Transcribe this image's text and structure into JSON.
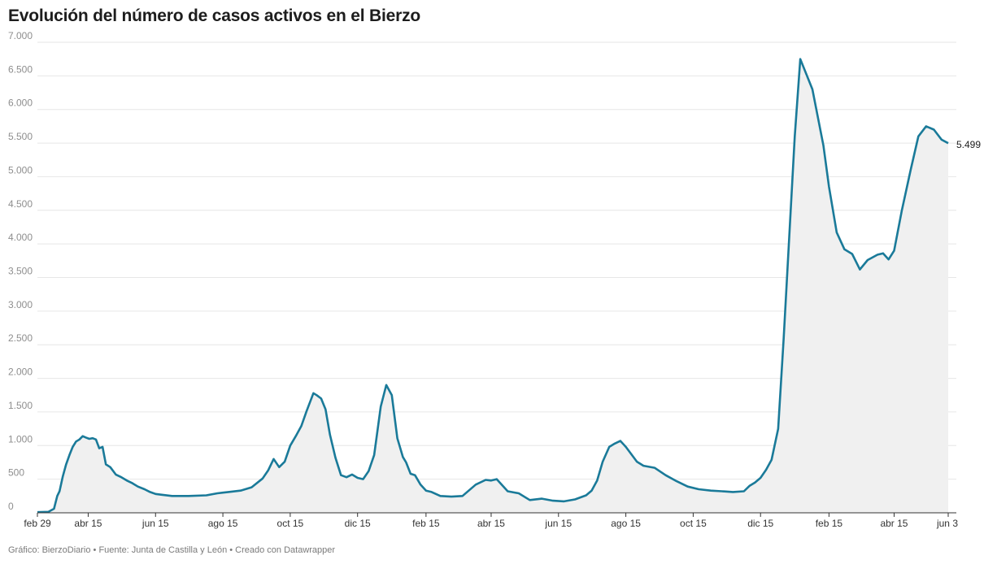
{
  "header": {
    "title": "Evolución del número de casos activos en el Bierzo"
  },
  "footer": {
    "credit": "Gráfico: BierzoDiario • Fuente: Junta de Castilla y León • Creado con Datawrapper"
  },
  "colors": {
    "line": "#1a7a99",
    "area": "#f0f0f0",
    "grid": "#e6e6e6",
    "axis": "#333333"
  },
  "chart_data": {
    "type": "area",
    "title": "Evolución del número de casos activos en el Bierzo",
    "xlabel": "",
    "ylabel": "",
    "x_scale": "date",
    "xlim": [
      "2020-02-29",
      "2022-06-03"
    ],
    "ylim": [
      0,
      7000
    ],
    "grid": true,
    "y_ticks": [
      {
        "value": 0,
        "label": "0"
      },
      {
        "value": 500,
        "label": "500"
      },
      {
        "value": 1000,
        "label": "1.000"
      },
      {
        "value": 1500,
        "label": "1.500"
      },
      {
        "value": 2000,
        "label": "2.000"
      },
      {
        "value": 2500,
        "label": "2.500"
      },
      {
        "value": 3000,
        "label": "3.000"
      },
      {
        "value": 3500,
        "label": "3.500"
      },
      {
        "value": 4000,
        "label": "4.000"
      },
      {
        "value": 4500,
        "label": "4.500"
      },
      {
        "value": 5000,
        "label": "5.000"
      },
      {
        "value": 5500,
        "label": "5.500"
      },
      {
        "value": 6000,
        "label": "6.000"
      },
      {
        "value": 6500,
        "label": "6.500"
      },
      {
        "value": 7000,
        "label": "7.000"
      }
    ],
    "x_ticks": [
      {
        "date": "2020-02-29",
        "label": "feb 29"
      },
      {
        "date": "2020-04-15",
        "label": "abr 15"
      },
      {
        "date": "2020-06-15",
        "label": "jun 15"
      },
      {
        "date": "2020-08-15",
        "label": "ago 15"
      },
      {
        "date": "2020-10-15",
        "label": "oct 15"
      },
      {
        "date": "2020-12-15",
        "label": "dic 15"
      },
      {
        "date": "2021-02-15",
        "label": "feb 15"
      },
      {
        "date": "2021-04-15",
        "label": "abr 15"
      },
      {
        "date": "2021-06-15",
        "label": "jun 15"
      },
      {
        "date": "2021-08-15",
        "label": "ago 15"
      },
      {
        "date": "2021-10-15",
        "label": "oct 15"
      },
      {
        "date": "2021-12-15",
        "label": "dic 15"
      },
      {
        "date": "2022-02-15",
        "label": "feb 15"
      },
      {
        "date": "2022-04-15",
        "label": "abr 15"
      },
      {
        "date": "2022-06-03",
        "label": "jun 3"
      }
    ],
    "end_label": "5.499",
    "series": [
      {
        "x": [
          "2020-02-29",
          "2020-03-10",
          "2020-03-15",
          "2020-03-18",
          "2020-03-20",
          "2020-03-23",
          "2020-03-26",
          "2020-03-29",
          "2020-04-01",
          "2020-04-04",
          "2020-04-07",
          "2020-04-10",
          "2020-04-13",
          "2020-04-16",
          "2020-04-19",
          "2020-04-22",
          "2020-04-25",
          "2020-04-28",
          "2020-05-01",
          "2020-05-05",
          "2020-05-10",
          "2020-05-15",
          "2020-05-20",
          "2020-05-25",
          "2020-05-30",
          "2020-06-05",
          "2020-06-10",
          "2020-06-15",
          "2020-06-20",
          "2020-06-30",
          "2020-07-15",
          "2020-07-31",
          "2020-08-10",
          "2020-08-15",
          "2020-08-20",
          "2020-08-31",
          "2020-09-10",
          "2020-09-20",
          "2020-09-25",
          "2020-09-30",
          "2020-10-05",
          "2020-10-10",
          "2020-10-15",
          "2020-10-20",
          "2020-10-25",
          "2020-10-30",
          "2020-11-05",
          "2020-11-08",
          "2020-11-12",
          "2020-11-16",
          "2020-11-20",
          "2020-11-25",
          "2020-11-30",
          "2020-12-05",
          "2020-12-10",
          "2020-12-15",
          "2020-12-20",
          "2020-12-25",
          "2020-12-30",
          "2021-01-05",
          "2021-01-10",
          "2021-01-15",
          "2021-01-20",
          "2021-01-25",
          "2021-01-28",
          "2021-02-01",
          "2021-02-05",
          "2021-02-10",
          "2021-02-15",
          "2021-02-20",
          "2021-02-28",
          "2021-03-10",
          "2021-03-20",
          "2021-04-01",
          "2021-04-10",
          "2021-04-15",
          "2021-04-20",
          "2021-04-30",
          "2021-05-10",
          "2021-05-20",
          "2021-05-31",
          "2021-06-10",
          "2021-06-20",
          "2021-06-30",
          "2021-07-05",
          "2021-07-10",
          "2021-07-15",
          "2021-07-20",
          "2021-07-25",
          "2021-07-31",
          "2021-08-05",
          "2021-08-10",
          "2021-08-15",
          "2021-08-20",
          "2021-08-25",
          "2021-08-31",
          "2021-09-10",
          "2021-09-20",
          "2021-09-30",
          "2021-10-10",
          "2021-10-20",
          "2021-10-31",
          "2021-11-10",
          "2021-11-20",
          "2021-11-30",
          "2021-12-05",
          "2021-12-10",
          "2021-12-15",
          "2021-12-20",
          "2021-12-25",
          "2021-12-31",
          "2022-01-05",
          "2022-01-10",
          "2022-01-15",
          "2022-01-20",
          "2022-01-31",
          "2022-02-05",
          "2022-02-10",
          "2022-02-15",
          "2022-02-22",
          "2022-03-01",
          "2022-03-08",
          "2022-03-15",
          "2022-03-22",
          "2022-03-31",
          "2022-04-05",
          "2022-04-10",
          "2022-04-15",
          "2022-04-22",
          "2022-04-30",
          "2022-05-07",
          "2022-05-14",
          "2022-05-21",
          "2022-05-28",
          "2022-06-03"
        ],
        "y": [
          10,
          15,
          60,
          250,
          320,
          540,
          720,
          860,
          980,
          1060,
          1090,
          1140,
          1120,
          1100,
          1110,
          1090,
          960,
          980,
          720,
          680,
          570,
          530,
          480,
          440,
          390,
          350,
          310,
          280,
          270,
          250,
          250,
          260,
          290,
          300,
          310,
          330,
          380,
          510,
          630,
          800,
          680,
          760,
          1000,
          1140,
          1290,
          1520,
          1780,
          1750,
          1700,
          1540,
          1160,
          820,
          560,
          530,
          570,
          520,
          500,
          620,
          860,
          1580,
          1900,
          1750,
          1110,
          830,
          750,
          580,
          560,
          420,
          330,
          310,
          250,
          240,
          250,
          420,
          490,
          480,
          500,
          320,
          290,
          190,
          210,
          180,
          170,
          200,
          230,
          260,
          330,
          480,
          760,
          980,
          1030,
          1070,
          980,
          870,
          760,
          700,
          670,
          560,
          470,
          390,
          350,
          330,
          320,
          310,
          320,
          400,
          450,
          520,
          640,
          790,
          1250,
          2600,
          4100,
          5600,
          6750,
          6300,
          5880,
          5460,
          4850,
          4170,
          3920,
          3850,
          3620,
          3760,
          3840,
          3860,
          3770,
          3900,
          4500,
          5100,
          5600,
          5750,
          5700,
          5550,
          5499
        ]
      }
    ]
  }
}
